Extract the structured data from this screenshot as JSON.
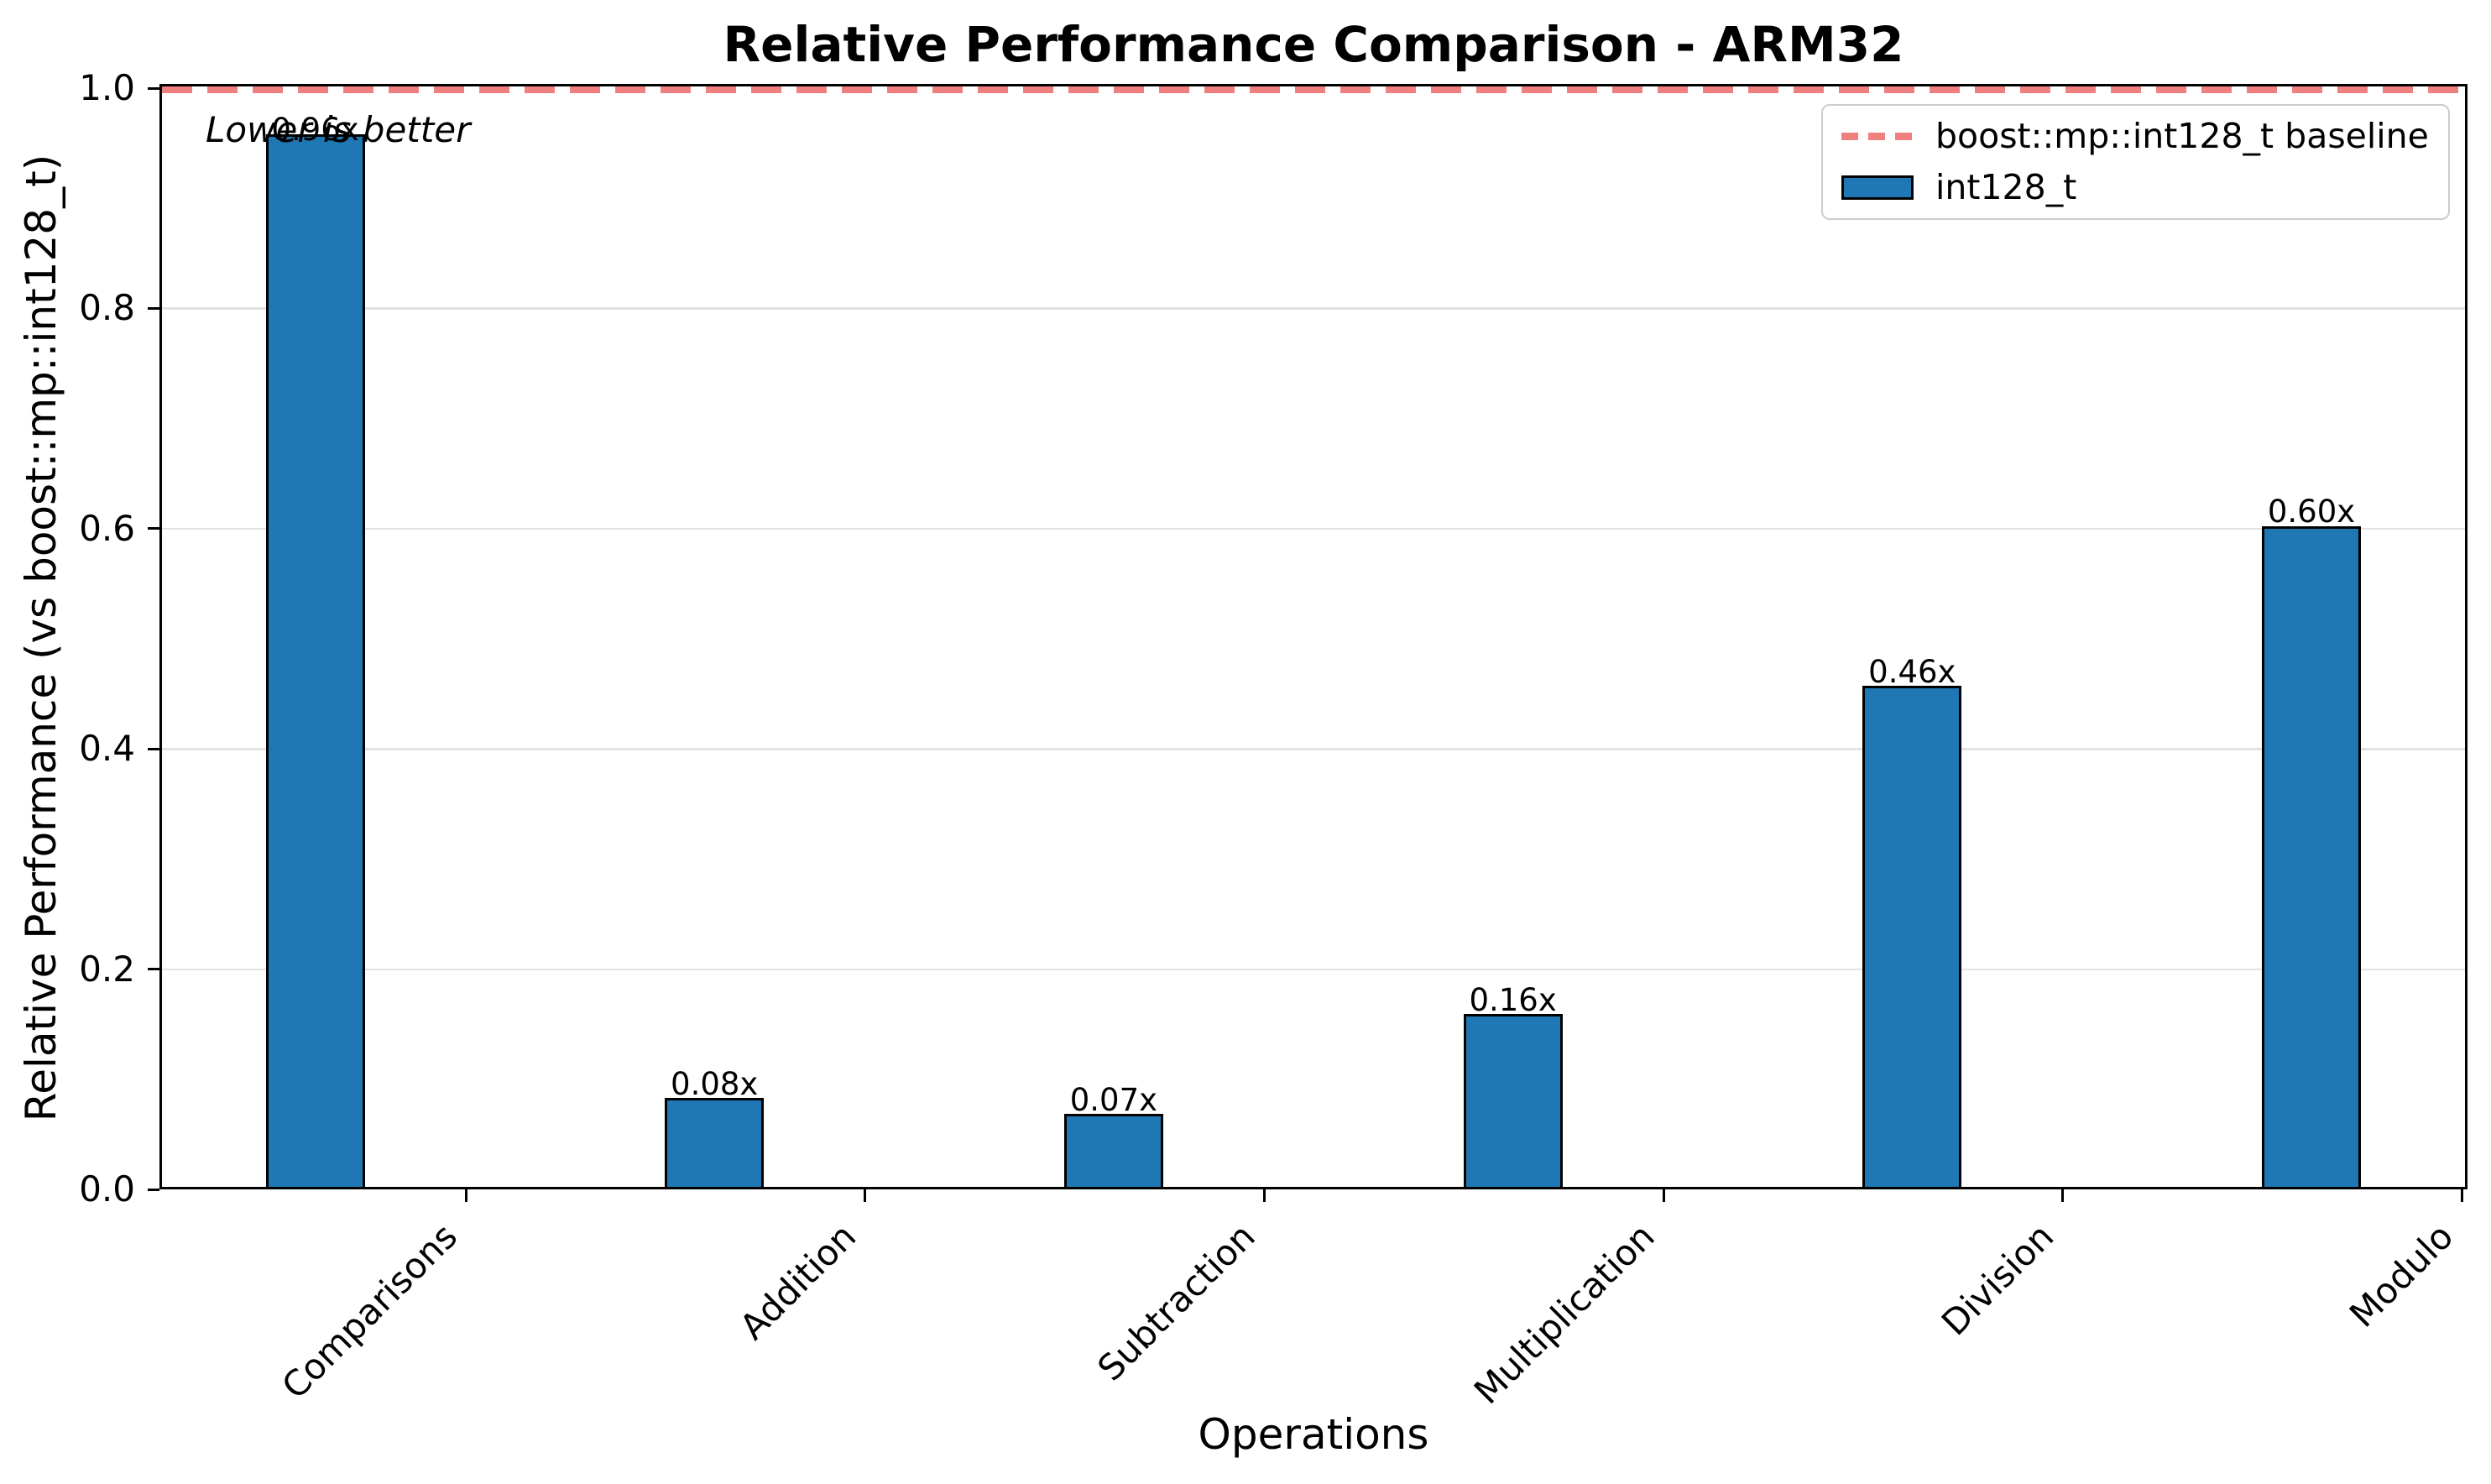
{
  "chart_data": {
    "type": "bar",
    "title": "Relative Performance Comparison - ARM32",
    "xlabel": "Operations",
    "ylabel": "Relative Performance (vs boost::mp::int128_t)",
    "categories": [
      "Comparisons",
      "Addition",
      "Subtraction",
      "Multiplication",
      "Division",
      "Modulo"
    ],
    "values": [
      0.956,
      0.081,
      0.066,
      0.157,
      0.455,
      0.6
    ],
    "bar_labels": [
      "0.96x",
      "0.08x",
      "0.07x",
      "0.16x",
      "0.46x",
      "0.60x"
    ],
    "ylim": [
      0.0,
      1.0
    ],
    "yticks": [
      0.0,
      0.2,
      0.4,
      0.6,
      0.8,
      1.0
    ],
    "ytick_labels": [
      "0.0",
      "0.2",
      "0.4",
      "0.6",
      "0.8",
      "1.0"
    ],
    "grid": true,
    "annotation": "Lower is better",
    "baseline": {
      "value": 1.0,
      "color": "#f08080",
      "style": "dashed"
    },
    "bar_color": "#1f77b4",
    "legend": {
      "position": "upper right",
      "entries": [
        {
          "label": "boost::mp::int128_t baseline",
          "type": "dashed-line",
          "color": "#f08080"
        },
        {
          "label": "int128_t",
          "type": "bar",
          "color": "#1f77b4"
        }
      ]
    }
  }
}
